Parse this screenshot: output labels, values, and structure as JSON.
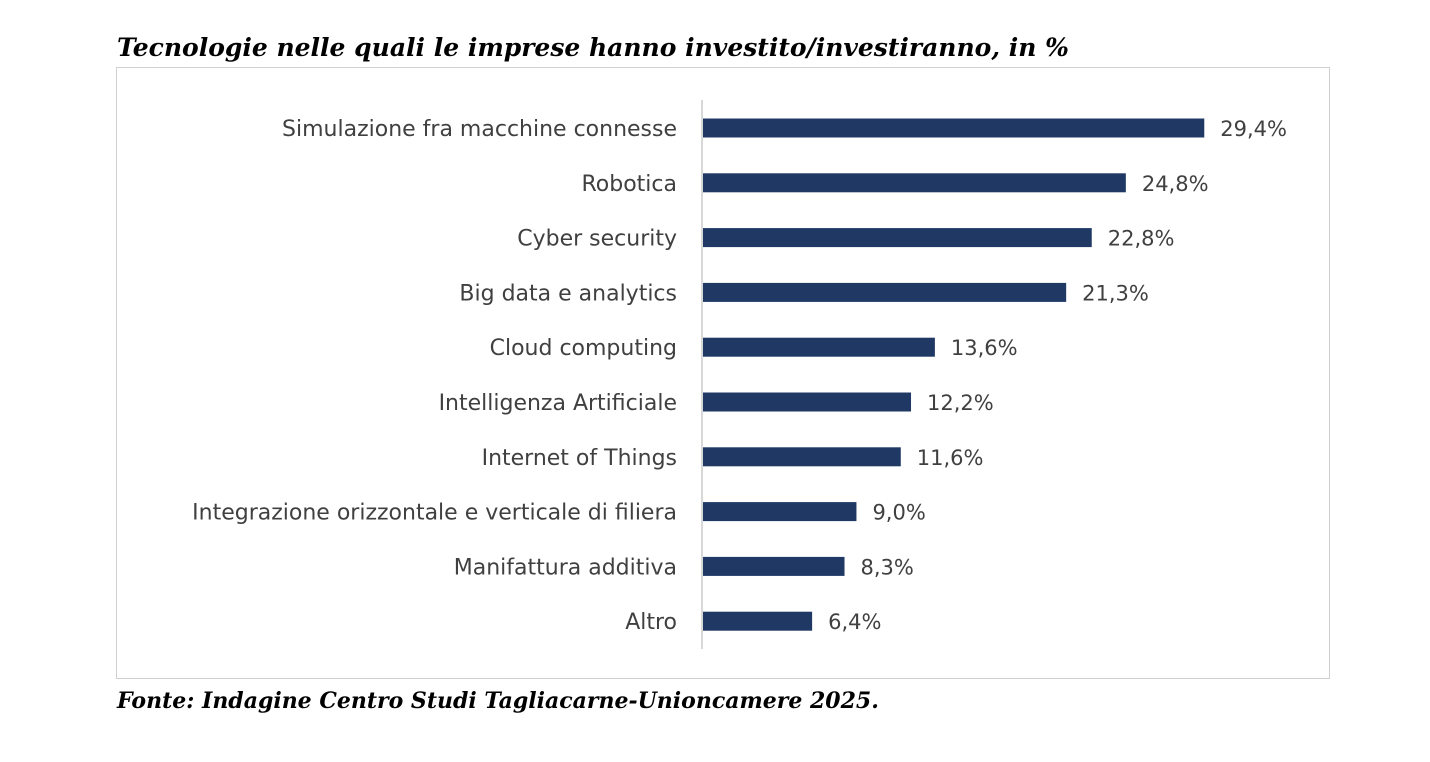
{
  "title": "Tecnologie nelle quali le imprese hanno investito/investiranno, in %",
  "source": "Fonte: Indagine Centro Studi Tagliacarne-Unioncamere 2025.",
  "chart_data": {
    "type": "bar",
    "orientation": "horizontal",
    "title": "Tecnologie nelle quali le imprese hanno investito/investiranno, in %",
    "categories": [
      "Simulazione fra macchine connesse",
      "Robotica",
      "Cyber security",
      "Big data e analytics",
      "Cloud computing",
      "Intelligenza Artificiale",
      "Internet of Things",
      "Integrazione orizzontale e verticale di filiera",
      "Manifattura additiva",
      "Altro"
    ],
    "values": [
      29.4,
      24.8,
      22.8,
      21.3,
      13.6,
      12.2,
      11.6,
      9.0,
      8.3,
      6.4
    ],
    "value_labels": [
      "29,4%",
      "24,8%",
      "22,8%",
      "21,3%",
      "13,6%",
      "12,2%",
      "11,6%",
      "9,0%",
      "8,3%",
      "6,4%"
    ],
    "bar_color": "#1f3864",
    "xlim": [
      0,
      35
    ],
    "grid": false,
    "legend": "none"
  }
}
